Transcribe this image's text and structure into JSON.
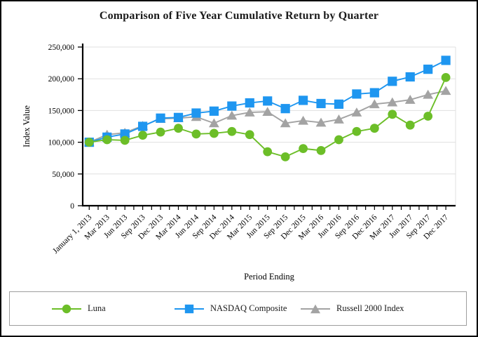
{
  "chart_data": {
    "type": "line",
    "title": "Comparison of Five Year Cumulative Return by Quarter",
    "xlabel": "Period Ending",
    "ylabel": "Index Value",
    "ylim": [
      0,
      250000
    ],
    "ytick_step": 50000,
    "ytick_labels": [
      "0",
      "50,000",
      "100,000",
      "150,000",
      "200,000",
      "250,000"
    ],
    "grid": true,
    "legend_position": "bottom",
    "categories": [
      "January 1, 2013",
      "Mar 2013",
      "Jun 2013",
      "Sep 2013",
      "Dec 2013",
      "Mar 2014",
      "Jun 2014",
      "Sep 2014",
      "Dec 2014",
      "Mar 2015",
      "Jun 2015",
      "Sep 2015",
      "Dec 2015",
      "Mar 2016",
      "Jun 2016",
      "Sep 2016",
      "Dec 2016",
      "Mar 2017",
      "Jun 2017",
      "Sep 2017",
      "Dec 2017"
    ],
    "series": [
      {
        "name": "Russell 2000 Index",
        "marker": "triangle",
        "color": "#a3a3a3",
        "values": [
          100000,
          112000,
          115000,
          126000,
          137000,
          138000,
          140000,
          130000,
          142000,
          147000,
          148000,
          130000,
          134000,
          131000,
          136000,
          147000,
          160000,
          163000,
          167000,
          175000,
          181000
        ]
      },
      {
        "name": "NASDAQ Composite",
        "marker": "square",
        "color": "#1e96f0",
        "values": [
          100000,
          108000,
          113000,
          125000,
          138000,
          139000,
          146000,
          149000,
          157000,
          162000,
          165000,
          153000,
          166000,
          161000,
          160000,
          176000,
          178000,
          196000,
          203000,
          215000,
          229000
        ]
      },
      {
        "name": "Luna",
        "marker": "circle",
        "color": "#6cbe28",
        "values": [
          100000,
          104000,
          103000,
          111000,
          116000,
          122000,
          113000,
          114000,
          117000,
          112000,
          85000,
          77000,
          90000,
          87000,
          104000,
          117000,
          122000,
          144000,
          127000,
          141000,
          202000
        ]
      }
    ],
    "legend_order": [
      2,
      1,
      0
    ],
    "axis_color": "#000000",
    "gridline_color": "#e0e0e0"
  }
}
